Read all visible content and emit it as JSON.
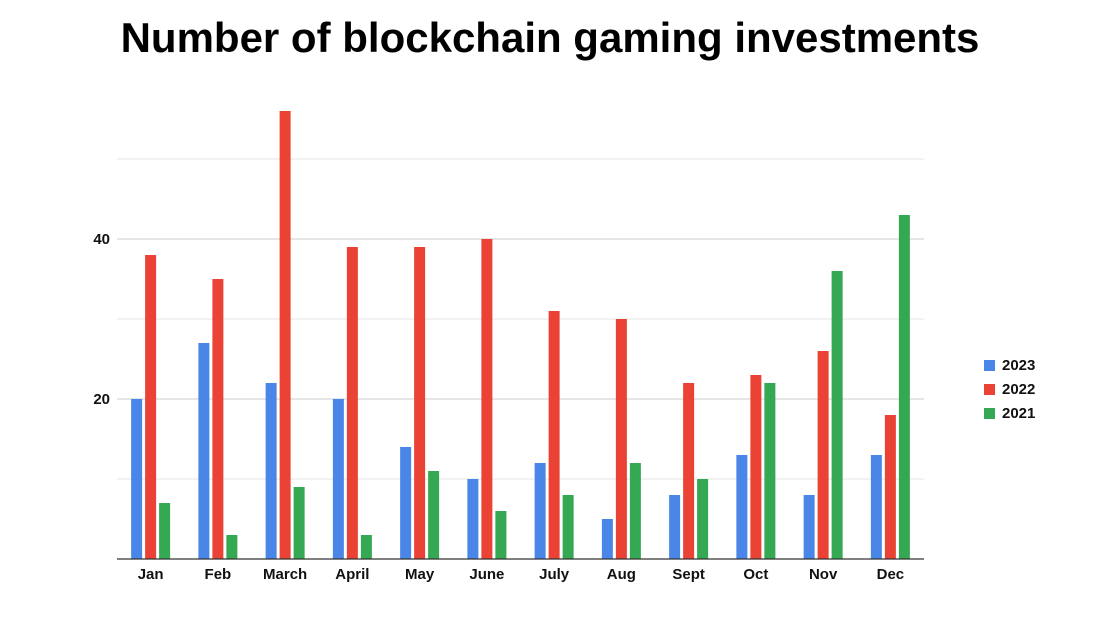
{
  "chart_data": {
    "type": "bar",
    "title": "Number of blockchain gaming investments",
    "categories": [
      "Jan",
      "Feb",
      "March",
      "April",
      "May",
      "June",
      "July",
      "Aug",
      "Sept",
      "Oct",
      "Nov",
      "Dec"
    ],
    "series": [
      {
        "name": "2023",
        "color": "#4a86e8",
        "values": [
          20,
          27,
          22,
          20,
          14,
          10,
          12,
          5,
          8,
          13,
          8,
          13
        ]
      },
      {
        "name": "2022",
        "color": "#ea4335",
        "values": [
          38,
          35,
          56,
          39,
          39,
          40,
          31,
          30,
          22,
          23,
          26,
          18
        ]
      },
      {
        "name": "2021",
        "color": "#34a853",
        "values": [
          7,
          3,
          9,
          3,
          11,
          6,
          8,
          12,
          10,
          22,
          36,
          43
        ]
      }
    ],
    "yticks": [
      20,
      40
    ],
    "ylim": [
      0,
      60
    ],
    "xlabel": "",
    "ylabel": "",
    "grid": true,
    "legend_position": "right"
  }
}
